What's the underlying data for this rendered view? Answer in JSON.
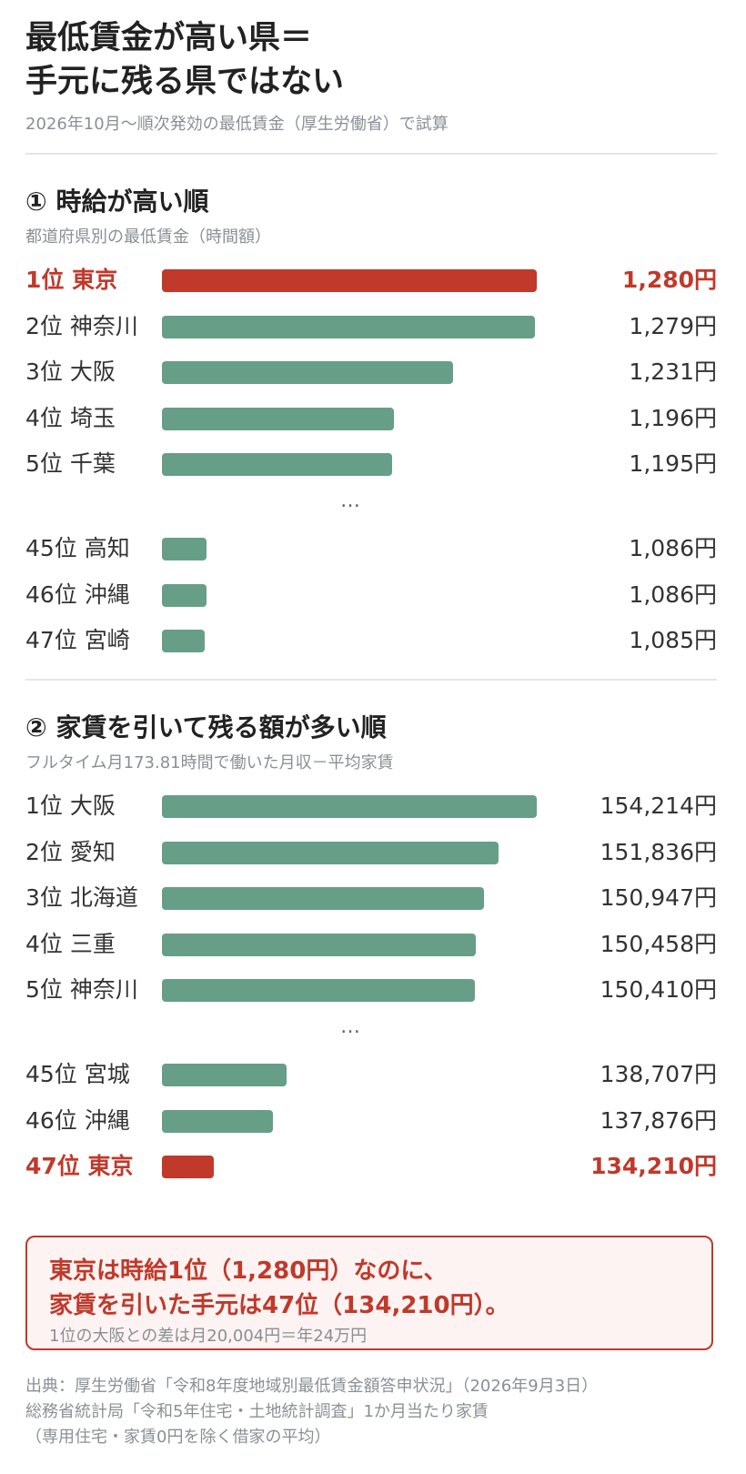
{
  "title_line1": "最低賃金が高い県＝",
  "title_line2": "手元に残る県ではない",
  "subtitle": "2026年10月〜順次発効の最低賃金（厚生労働省）で試算",
  "colors": {
    "accent": "#c0392b",
    "bar": "#679e87",
    "muted": "#8a8f96"
  },
  "chart_data": [
    {
      "type": "bar",
      "title": "① 時給が高い順",
      "subtitle": "都道府県別の最低賃金（時間額）",
      "unit": "円",
      "rows": [
        {
          "label": "1位 東京",
          "value": 1280,
          "display": "1,280円",
          "highlight": true
        },
        {
          "label": "2位 神奈川",
          "value": 1279,
          "display": "1,279円",
          "highlight": false
        },
        {
          "label": "3位 大阪",
          "value": 1231,
          "display": "1,231円",
          "highlight": false
        },
        {
          "label": "4位 埼玉",
          "value": 1196,
          "display": "1,196円",
          "highlight": false
        },
        {
          "label": "5位 千葉",
          "value": 1195,
          "display": "1,195円",
          "highlight": false
        },
        {
          "label": "…",
          "ellipsis": true
        },
        {
          "label": "45位 高知",
          "value": 1086,
          "display": "1,086円",
          "highlight": false
        },
        {
          "label": "46位 沖縄",
          "value": 1086,
          "display": "1,086円",
          "highlight": false
        },
        {
          "label": "47位 宮崎",
          "value": 1085,
          "display": "1,085円",
          "highlight": false
        }
      ],
      "scale_min": 1060,
      "scale_max": 1280
    },
    {
      "type": "bar",
      "title": "② 家賃を引いて残る額が多い順",
      "subtitle": "フルタイム月173.81時間で働いた月収－平均家賃",
      "unit": "円",
      "rows": [
        {
          "label": "1位 大阪",
          "value": 154214,
          "display": "154,214円",
          "highlight": false
        },
        {
          "label": "2位 愛知",
          "value": 151836,
          "display": "151,836円",
          "highlight": false
        },
        {
          "label": "3位 北海道",
          "value": 150947,
          "display": "150,947円",
          "highlight": false
        },
        {
          "label": "4位 三重",
          "value": 150458,
          "display": "150,458円",
          "highlight": false
        },
        {
          "label": "5位 神奈川",
          "value": 150410,
          "display": "150,410円",
          "highlight": false
        },
        {
          "label": "…",
          "ellipsis": true
        },
        {
          "label": "45位 宮城",
          "value": 138707,
          "display": "138,707円",
          "highlight": false
        },
        {
          "label": "46位 沖縄",
          "value": 137876,
          "display": "137,876円",
          "highlight": false
        },
        {
          "label": "47位 東京",
          "value": 134210,
          "display": "134,210円",
          "highlight": true
        }
      ],
      "scale_min": 131000,
      "scale_max": 154214
    }
  ],
  "callout": {
    "line1": "東京は時給1位（1,280円）なのに、",
    "line2": "家賃を引いた手元は47位（134,210円）。",
    "line3": "1位の大阪との差は月20,004円＝年24万円"
  },
  "source": [
    "出典：厚生労働省「令和8年度地域別最低賃金額答申状況」（2026年9月3日）",
    "総務省統計局「令和5年住宅・土地統計調査」1か月当たり家賃",
    "（専用住宅・家賃0円を除く借家の平均）"
  ]
}
